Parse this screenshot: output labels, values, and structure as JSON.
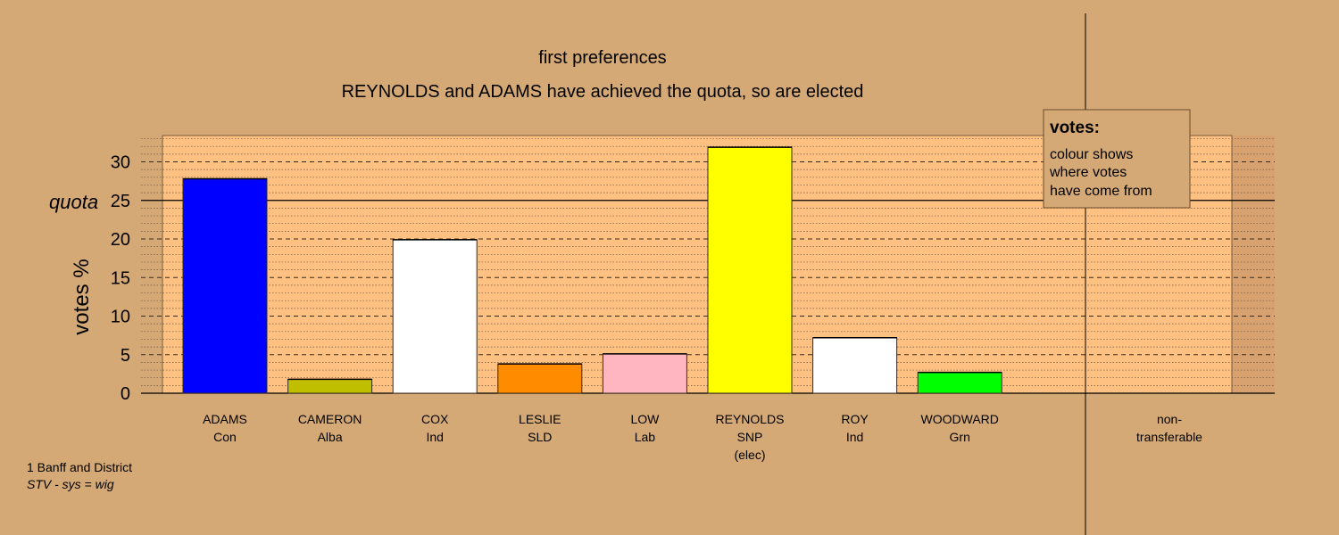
{
  "chart_data": {
    "type": "bar",
    "title": "first preferences",
    "subtitle": "REYNOLDS and ADAMS have achieved the quota, so are elected",
    "ylabel": "votes %",
    "ylim": [
      0,
      33
    ],
    "yticks": [
      0,
      5,
      10,
      15,
      20,
      25,
      30
    ],
    "quota": 25,
    "quota_label": "quota",
    "grid": true,
    "categories": [
      {
        "name": "ADAMS",
        "party": "Con",
        "note": "",
        "value": 27.8,
        "color": "#0000ff"
      },
      {
        "name": "CAMERON",
        "party": "Alba",
        "note": "",
        "value": 1.8,
        "color": "#bfbf00"
      },
      {
        "name": "COX",
        "party": "Ind",
        "note": "",
        "value": 19.9,
        "color": "#ffffff"
      },
      {
        "name": "LESLIE",
        "party": "SLD",
        "note": "",
        "value": 3.8,
        "color": "#ff8c00"
      },
      {
        "name": "LOW",
        "party": "Lab",
        "note": "",
        "value": 5.1,
        "color": "#ffb6c1"
      },
      {
        "name": "REYNOLDS",
        "party": "SNP",
        "note": "(elec)",
        "value": 31.9,
        "color": "#ffff00"
      },
      {
        "name": "ROY",
        "party": "Ind",
        "note": "",
        "value": 7.2,
        "color": "#ffffff"
      },
      {
        "name": "WOODWARD",
        "party": "Grn",
        "note": "",
        "value": 2.7,
        "color": "#00ff00"
      }
    ],
    "nontransferable": {
      "line1": "non-",
      "line2": "transferable",
      "value": 0
    },
    "legend": {
      "title": "votes:",
      "lines": [
        "colour shows",
        "where votes",
        "have come from"
      ],
      "placement": "top-right"
    }
  },
  "footer": {
    "line1": "1 Banff and District",
    "line2": "STV - sys = wig"
  },
  "colors": {
    "background": "#d4a976",
    "plot_area": "#ffc080"
  }
}
